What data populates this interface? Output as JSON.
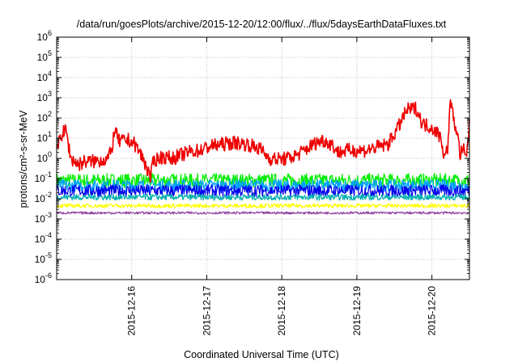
{
  "chart_data": {
    "type": "line",
    "title": "/data/run/goesPlots/archive/2015-12-20/12:00/flux/../flux/5daysEarthDataFluxes.txt",
    "xlabel": "Coordinated Universal Time (UTC)",
    "ylabel": "protons/cm²-s-sr-MeV",
    "y_scale": "log",
    "ylim_exponents": [
      -6,
      6
    ],
    "ytick_exponents": [
      -6,
      -5,
      -4,
      -3,
      -2,
      -1,
      0,
      1,
      2,
      3,
      4,
      5,
      6
    ],
    "xlim": [
      "2015-12-15T00:00",
      "2015-12-20T12:00"
    ],
    "x_ticks": [
      "2015-12-16",
      "2015-12-17",
      "2015-12-18",
      "2015-12-19",
      "2015-12-20"
    ],
    "grid": true,
    "series": [
      {
        "color": "#ee0000",
        "noise": 0.35,
        "points": [
          [
            "2015-12-15T00:00",
            1.5
          ],
          [
            "2015-12-15T01:00",
            12
          ],
          [
            "2015-12-15T03:00",
            25
          ],
          [
            "2015-12-15T04:30",
            1.0
          ],
          [
            "2015-12-15T07:00",
            0.5
          ],
          [
            "2015-12-15T09:00",
            0.7
          ],
          [
            "2015-12-15T12:00",
            0.7
          ],
          [
            "2015-12-15T14:00",
            0.8
          ],
          [
            "2015-12-15T16:00",
            0.9
          ],
          [
            "2015-12-15T17:30",
            2.0
          ],
          [
            "2015-12-15T18:30",
            25
          ],
          [
            "2015-12-15T20:00",
            7
          ],
          [
            "2015-12-15T23:00",
            8
          ],
          [
            "2015-12-16T01:00",
            5
          ],
          [
            "2015-12-16T03:00",
            1.5
          ],
          [
            "2015-12-16T05:00",
            0.3
          ],
          [
            "2015-12-16T06:00",
            0.1
          ],
          [
            "2015-12-16T07:00",
            0.8
          ],
          [
            "2015-12-16T10:00",
            1.2
          ],
          [
            "2015-12-16T13:00",
            1.0
          ],
          [
            "2015-12-16T16:00",
            1.5
          ],
          [
            "2015-12-16T19:00",
            2.2
          ],
          [
            "2015-12-16T22:00",
            2.5
          ],
          [
            "2015-12-17T01:00",
            4
          ],
          [
            "2015-12-17T05:00",
            5
          ],
          [
            "2015-12-17T09:00",
            6
          ],
          [
            "2015-12-17T13:00",
            5
          ],
          [
            "2015-12-17T17:00",
            3
          ],
          [
            "2015-12-17T20:00",
            1.0
          ],
          [
            "2015-12-17T23:00",
            0.9
          ],
          [
            "2015-12-18T02:00",
            1.0
          ],
          [
            "2015-12-18T05:00",
            1.5
          ],
          [
            "2015-12-18T08:00",
            3
          ],
          [
            "2015-12-18T11:00",
            6
          ],
          [
            "2015-12-18T13:00",
            8
          ],
          [
            "2015-12-18T16:00",
            5
          ],
          [
            "2015-12-18T18:00",
            2.0
          ],
          [
            "2015-12-18T21:00",
            2.5
          ],
          [
            "2015-12-19T00:00",
            2.5
          ],
          [
            "2015-12-19T03:00",
            2.5
          ],
          [
            "2015-12-19T06:00",
            3.5
          ],
          [
            "2015-12-19T10:00",
            5
          ],
          [
            "2015-12-19T13:00",
            30
          ],
          [
            "2015-12-19T16:00",
            250
          ],
          [
            "2015-12-19T19:00",
            300
          ],
          [
            "2015-12-19T21:00",
            50
          ],
          [
            "2015-12-19T23:00",
            40
          ],
          [
            "2015-12-20T01:00",
            25
          ],
          [
            "2015-12-20T03:00",
            10
          ],
          [
            "2015-12-20T04:00",
            1.0
          ],
          [
            "2015-12-20T05:00",
            3
          ],
          [
            "2015-12-20T06:00",
            1000
          ],
          [
            "2015-12-20T07:00",
            60
          ],
          [
            "2015-12-20T08:00",
            25
          ],
          [
            "2015-12-20T09:00",
            1.5
          ],
          [
            "2015-12-20T10:00",
            3
          ],
          [
            "2015-12-20T11:00",
            0.8
          ],
          [
            "2015-12-20T12:00",
            60
          ]
        ]
      },
      {
        "color": "#00ee00",
        "noise": 0.35,
        "points": [
          [
            "2015-12-15T00:00",
            0.08
          ],
          [
            "2015-12-20T12:00",
            0.08
          ]
        ]
      },
      {
        "color": "#00a0ff",
        "noise": 0.3,
        "points": [
          [
            "2015-12-15T00:00",
            0.045
          ],
          [
            "2015-12-20T12:00",
            0.045
          ]
        ]
      },
      {
        "color": "#0000ee",
        "noise": 0.3,
        "points": [
          [
            "2015-12-15T00:00",
            0.025
          ],
          [
            "2015-12-20T12:00",
            0.025
          ]
        ]
      },
      {
        "color": "#00b0b0",
        "noise": 0.15,
        "points": [
          [
            "2015-12-15T00:00",
            0.012
          ],
          [
            "2015-12-20T12:00",
            0.012
          ]
        ]
      },
      {
        "color": "#ffff00",
        "noise": 0.1,
        "points": [
          [
            "2015-12-15T00:00",
            0.0045
          ],
          [
            "2015-12-20T12:00",
            0.0045
          ]
        ]
      },
      {
        "color": "#9040a0",
        "noise": 0.06,
        "points": [
          [
            "2015-12-15T00:00",
            0.002
          ],
          [
            "2015-12-20T12:00",
            0.002
          ]
        ]
      }
    ]
  }
}
